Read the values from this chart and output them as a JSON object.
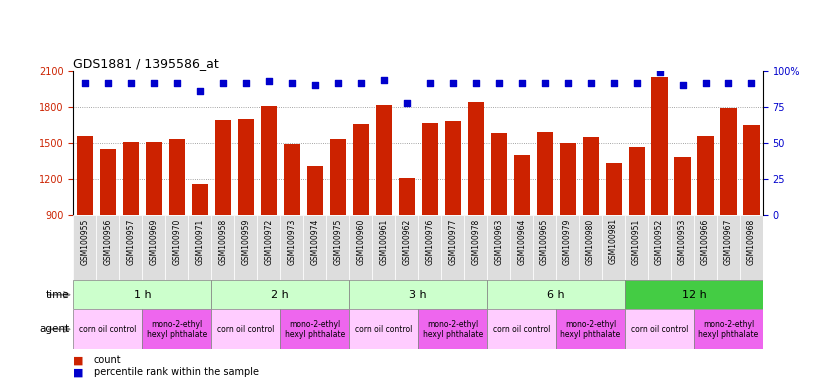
{
  "title": "GDS1881 / 1395586_at",
  "samples": [
    "GSM100955",
    "GSM100956",
    "GSM100957",
    "GSM100969",
    "GSM100970",
    "GSM100971",
    "GSM100958",
    "GSM100959",
    "GSM100972",
    "GSM100973",
    "GSM100974",
    "GSM100975",
    "GSM100960",
    "GSM100961",
    "GSM100962",
    "GSM100976",
    "GSM100977",
    "GSM100978",
    "GSM100963",
    "GSM100964",
    "GSM100965",
    "GSM100979",
    "GSM100980",
    "GSM100981",
    "GSM100951",
    "GSM100952",
    "GSM100953",
    "GSM100966",
    "GSM100967",
    "GSM100968"
  ],
  "counts": [
    1560,
    1450,
    1510,
    1510,
    1530,
    1160,
    1690,
    1700,
    1810,
    1490,
    1310,
    1530,
    1660,
    1820,
    1210,
    1670,
    1680,
    1840,
    1580,
    1400,
    1590,
    1500,
    1550,
    1330,
    1470,
    2050,
    1380,
    1560,
    1790,
    1650
  ],
  "percentiles": [
    92,
    92,
    92,
    92,
    92,
    86,
    92,
    92,
    93,
    92,
    90,
    92,
    92,
    94,
    78,
    92,
    92,
    92,
    92,
    92,
    92,
    92,
    92,
    92,
    92,
    99,
    90,
    92,
    92,
    92
  ],
  "ylim_left": [
    900,
    2100
  ],
  "ylim_right": [
    0,
    100
  ],
  "yticks_left": [
    900,
    1200,
    1500,
    1800,
    2100
  ],
  "yticks_right": [
    0,
    25,
    50,
    75,
    100
  ],
  "bar_color": "#cc2200",
  "dot_color": "#0000cc",
  "time_groups": [
    {
      "label": "1 h",
      "start": 0,
      "end": 6,
      "color": "#ccffcc"
    },
    {
      "label": "2 h",
      "start": 6,
      "end": 12,
      "color": "#ccffcc"
    },
    {
      "label": "3 h",
      "start": 12,
      "end": 18,
      "color": "#ccffcc"
    },
    {
      "label": "6 h",
      "start": 18,
      "end": 24,
      "color": "#ccffcc"
    },
    {
      "label": "12 h",
      "start": 24,
      "end": 30,
      "color": "#44cc44"
    }
  ],
  "agent_groups": [
    {
      "label": "corn oil control",
      "start": 0,
      "end": 3,
      "color": "#ffccff"
    },
    {
      "label": "mono-2-ethyl\nhexyl phthalate",
      "start": 3,
      "end": 6,
      "color": "#ee66ee"
    },
    {
      "label": "corn oil control",
      "start": 6,
      "end": 9,
      "color": "#ffccff"
    },
    {
      "label": "mono-2-ethyl\nhexyl phthalate",
      "start": 9,
      "end": 12,
      "color": "#ee66ee"
    },
    {
      "label": "corn oil control",
      "start": 12,
      "end": 15,
      "color": "#ffccff"
    },
    {
      "label": "mono-2-ethyl\nhexyl phthalate",
      "start": 15,
      "end": 18,
      "color": "#ee66ee"
    },
    {
      "label": "corn oil control",
      "start": 18,
      "end": 21,
      "color": "#ffccff"
    },
    {
      "label": "mono-2-ethyl\nhexyl phthalate",
      "start": 21,
      "end": 24,
      "color": "#ee66ee"
    },
    {
      "label": "corn oil control",
      "start": 24,
      "end": 27,
      "color": "#ffccff"
    },
    {
      "label": "mono-2-ethyl\nhexyl phthalate",
      "start": 27,
      "end": 30,
      "color": "#ee66ee"
    }
  ],
  "grid_color": "#888888",
  "bg_color": "#ffffff",
  "label_bg_color": "#dddddd"
}
